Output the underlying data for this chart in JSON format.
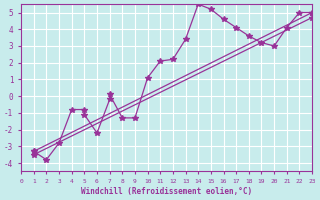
{
  "xlabel": "Windchill (Refroidissement eolien,°C)",
  "xlim": [
    0,
    23
  ],
  "ylim": [
    -4.5,
    5.5
  ],
  "xticks": [
    0,
    1,
    2,
    3,
    4,
    5,
    6,
    7,
    8,
    9,
    10,
    11,
    12,
    13,
    14,
    15,
    16,
    17,
    18,
    19,
    20,
    21,
    22,
    23
  ],
  "yticks": [
    -4,
    -3,
    -2,
    -1,
    0,
    1,
    2,
    3,
    4,
    5
  ],
  "bg_color": "#c8ecec",
  "line_color": "#993399",
  "grid_color": "#ffffff",
  "series1_x": [
    1,
    2,
    3,
    4,
    5,
    5,
    6,
    7,
    7,
    8,
    9,
    10,
    11,
    12,
    13,
    14,
    15,
    16,
    17,
    18,
    19,
    20,
    21,
    22,
    23
  ],
  "series1_y": [
    -3.3,
    -3.8,
    -2.8,
    -0.8,
    -0.8,
    -1.1,
    -2.2,
    -0.2,
    0.1,
    -1.3,
    -1.3,
    1.1,
    2.1,
    2.2,
    3.4,
    5.5,
    5.2,
    4.6,
    4.1,
    3.6,
    3.2,
    3.0,
    4.1,
    5.0,
    5.0
  ],
  "series2_x": [
    1,
    23
  ],
  "series2_y": [
    -3.3,
    5.0
  ],
  "series3_x": [
    1,
    23
  ],
  "series3_y": [
    -3.5,
    4.7
  ]
}
